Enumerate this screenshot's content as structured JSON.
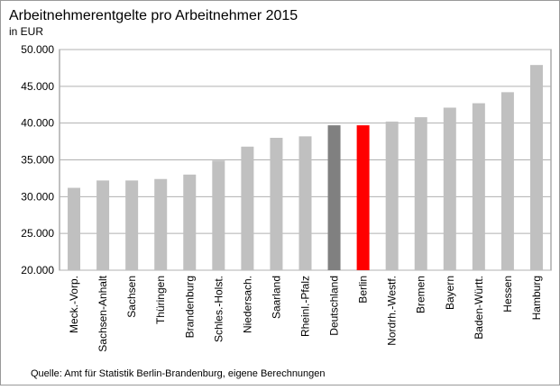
{
  "chart_data": {
    "type": "bar",
    "title": "Arbeitnehmerentgelte pro Arbeitnehmer 2015",
    "subtitle": "in EUR",
    "source": "Quelle: Amt für Statistik Berlin-Brandenburg, eigene Berechnungen",
    "categories": [
      "Meck.-Vorp.",
      "Sachsen-Anhalt",
      "Sachsen",
      "Thüringen",
      "Brandenburg",
      "Schles.-Holst.",
      "Niedersach.",
      "Saarland",
      "Rheinl.-Pfalz",
      "Deutschland",
      "Berlin",
      "Nordrh.-Westf.",
      "Bremen",
      "Bayern",
      "Baden-Württ.",
      "Hessen",
      "Hamburg"
    ],
    "values": [
      31200,
      32200,
      32200,
      32400,
      33000,
      34900,
      36800,
      38000,
      38200,
      39700,
      39700,
      40200,
      40800,
      42100,
      42700,
      44200,
      47900
    ],
    "colors": [
      "#c0c0c0",
      "#c0c0c0",
      "#c0c0c0",
      "#c0c0c0",
      "#c0c0c0",
      "#c0c0c0",
      "#c0c0c0",
      "#c0c0c0",
      "#c0c0c0",
      "#808080",
      "#ff0000",
      "#c0c0c0",
      "#c0c0c0",
      "#c0c0c0",
      "#c0c0c0",
      "#c0c0c0",
      "#c0c0c0"
    ],
    "ylim": [
      20000,
      50000
    ],
    "yticks": [
      {
        "value": 20000,
        "label": "20.000"
      },
      {
        "value": 25000,
        "label": "25.000"
      },
      {
        "value": 30000,
        "label": "30.000"
      },
      {
        "value": 35000,
        "label": "35.000"
      },
      {
        "value": 40000,
        "label": "40.000"
      },
      {
        "value": 45000,
        "label": "45.000"
      },
      {
        "value": 50000,
        "label": "50.000"
      }
    ],
    "grid": true
  }
}
